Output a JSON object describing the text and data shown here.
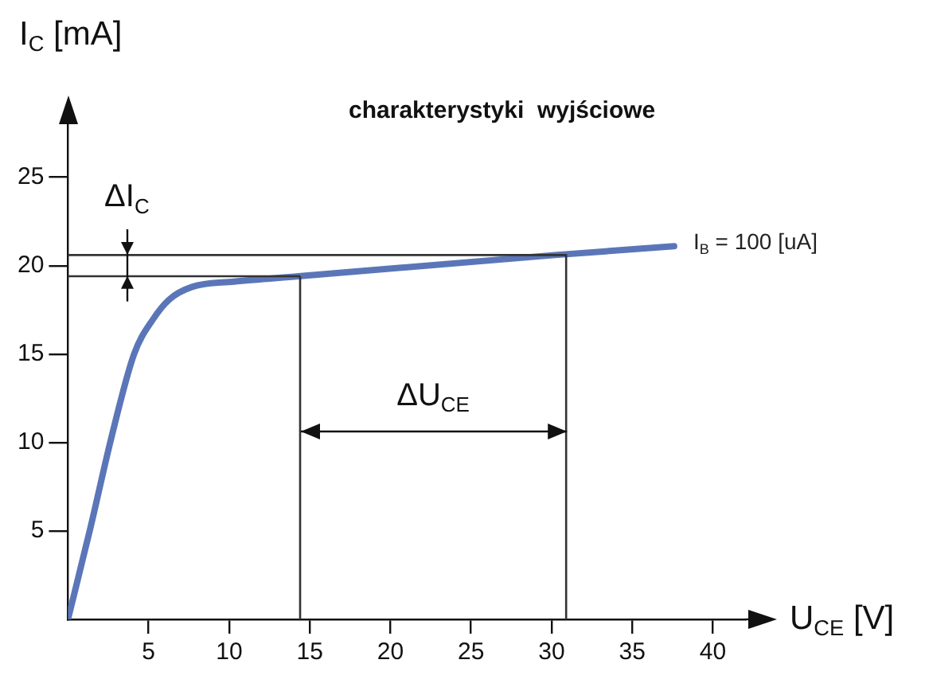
{
  "chart_data": {
    "type": "line",
    "title": "charakterystyki  wyjściowe",
    "xlabel": "U$_{CE}$ [V]",
    "ylabel": "I$_{C}$ [mA]",
    "x": [
      0,
      1.4,
      2.7,
      4.1,
      5.3,
      6.3,
      7.7,
      10.3,
      14.3,
      30.2,
      37.6
    ],
    "series": [
      {
        "name": "I$_{B}$ = 100 [uA]",
        "color": "#5b76b8",
        "values": [
          0,
          5.2,
          10.3,
          15,
          17,
          18.1,
          18.8,
          19.1,
          19.4,
          20.6,
          21.1
        ]
      }
    ],
    "xlim": [
      0,
      42
    ],
    "ylim": [
      0,
      28
    ],
    "xticks": [
      5,
      10,
      15,
      20,
      25,
      30,
      35,
      40
    ],
    "yticks": [
      5,
      10,
      15,
      20,
      25
    ],
    "ref_lines": [
      {
        "axis": "y",
        "value": 19.4,
        "color": "#333333"
      },
      {
        "axis": "y",
        "value": 20.6,
        "color": "#333333"
      },
      {
        "axis": "x",
        "value": 14.4,
        "color": "#333333"
      },
      {
        "axis": "x",
        "value": 30.9,
        "color": "#333333"
      }
    ],
    "annotations": [
      "ΔI$_{C}$",
      "ΔU$_{CE}$"
    ],
    "grid": false,
    "legend": false,
    "marker": "none",
    "line_style": "solid"
  }
}
